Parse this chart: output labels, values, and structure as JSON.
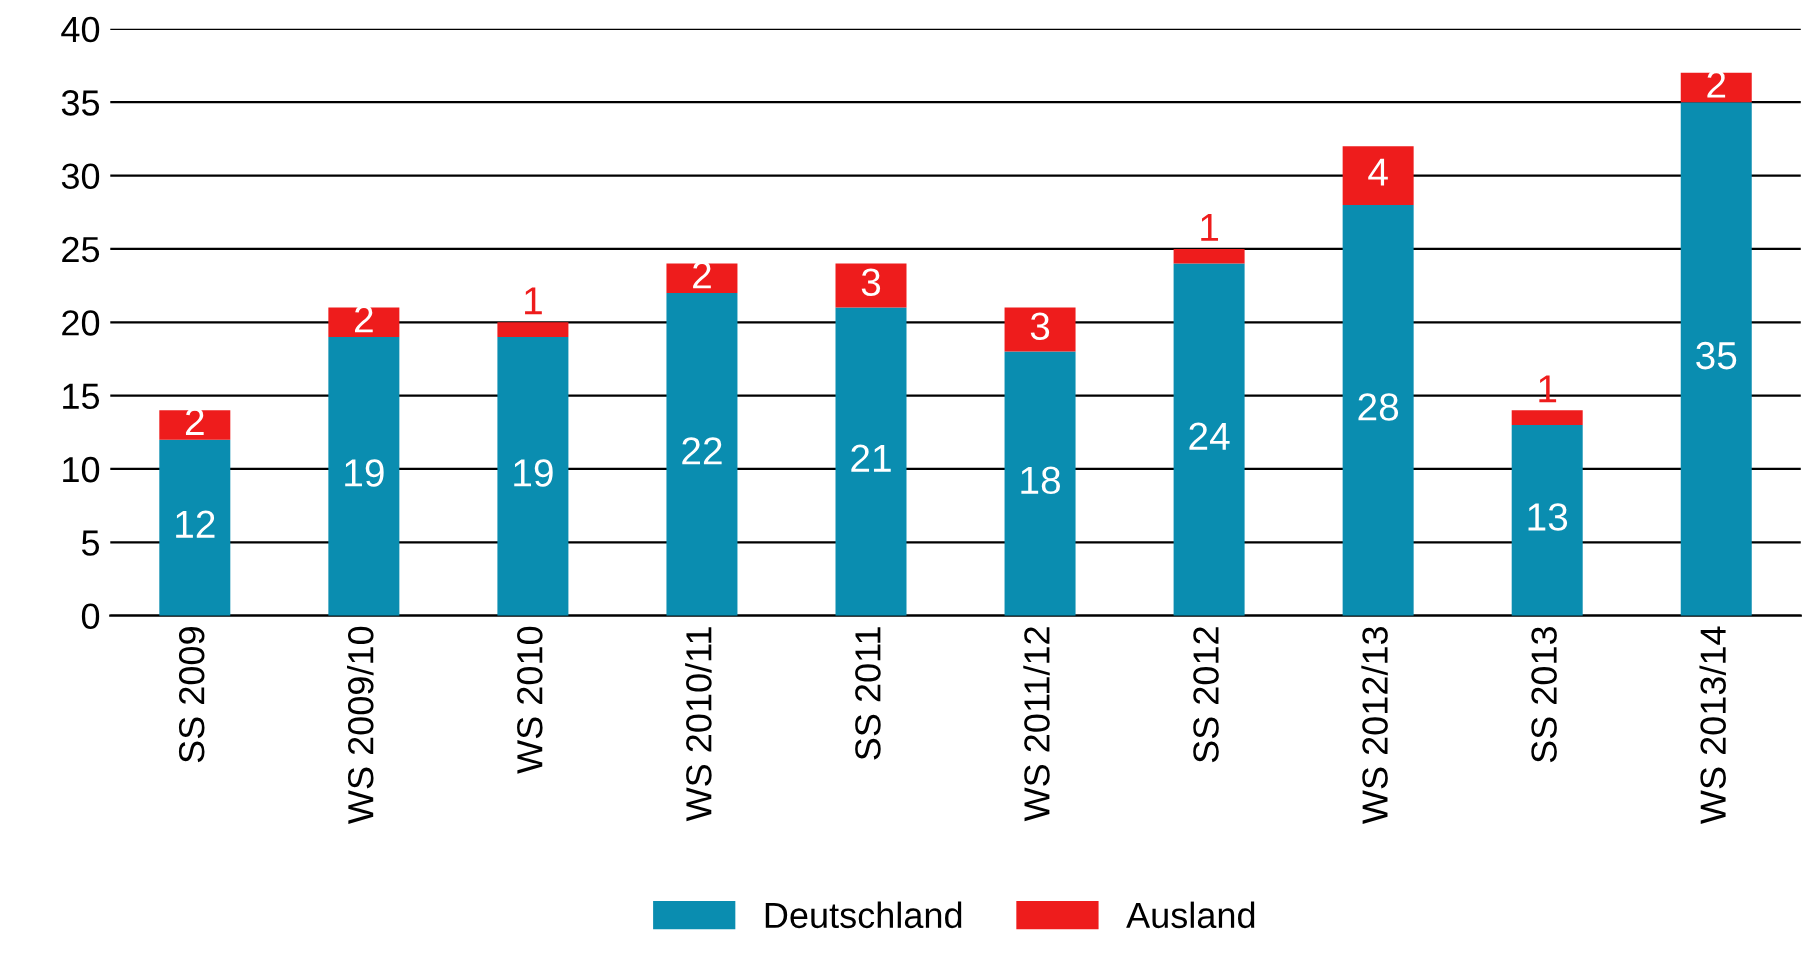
{
  "chart_data": {
    "type": "bar",
    "stacked": true,
    "categories": [
      "SS 2009",
      "WS 2009/10",
      "WS 2010",
      "WS 2010/11",
      "SS 2011",
      "WS 2011/12",
      "SS 2012",
      "WS 2012/13",
      "SS 2013",
      "WS 2013/14"
    ],
    "series": [
      {
        "name": "Deutschland",
        "color": "#0a8db0",
        "values": [
          12,
          19,
          19,
          22,
          21,
          18,
          24,
          28,
          13,
          35
        ]
      },
      {
        "name": "Ausland",
        "color": "#ee1c1c",
        "values": [
          2,
          2,
          1,
          2,
          3,
          3,
          1,
          4,
          1,
          2
        ]
      }
    ],
    "ylim": [
      0,
      40
    ],
    "yticks": [
      0,
      5,
      10,
      15,
      20,
      25,
      30,
      35,
      40
    ],
    "grid": "y",
    "legend": "bottom",
    "data_labels": true
  }
}
